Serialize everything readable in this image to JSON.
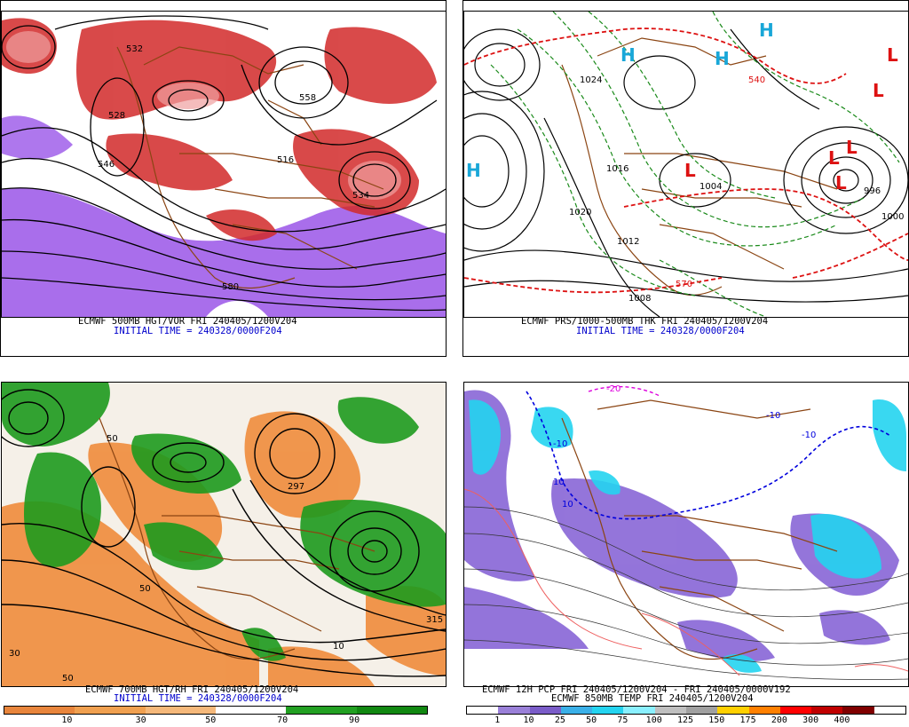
{
  "panels": {
    "top_left": {
      "title_line": "ECMWF 500MB HGT/VOR FRI 240405/1200V204",
      "init_line": "INITIAL TIME = 240328/0000F204",
      "contour_labels": [
        "532",
        "558",
        "516",
        "534",
        "528",
        "580",
        "546"
      ]
    },
    "top_right": {
      "title_line": "ECMWF PRS/1000-500MB THK FRI 240405/1200V204",
      "init_line": "INITIAL TIME = 240328/0000F204",
      "pressure_labels": [
        "1020",
        "1016",
        "1012",
        "1004",
        "996",
        "1000",
        "1008",
        "1024"
      ],
      "thickness_labels": [
        "570",
        "540"
      ],
      "high_marker": "H",
      "low_marker": "L"
    },
    "bottom_left": {
      "title_line": "ECMWF 700MB HGT/RH FRI 240405/1200V204",
      "init_line": "INITIAL TIME = 240328/0000F204",
      "contour_labels": [
        "50",
        "30",
        "297",
        "315",
        "50",
        "50",
        "10"
      ],
      "colorbar": {
        "colors": [
          "#e8853c",
          "#f0a050",
          "#f5b87a",
          "#ffffff",
          "#22a022",
          "#118811"
        ],
        "ticks": [
          "10",
          "30",
          "50",
          "70",
          "90"
        ]
      }
    },
    "bottom_right": {
      "title_line": "ECMWF 12H PCP FRI 240405/1200V204 - FRI 240405/0000V192",
      "subtitle_line": "ECMWF 850MB TEMP FRI 240405/1200V204",
      "contour_labels": [
        "-20",
        "-10",
        "-10",
        "10",
        "-10",
        "10"
      ],
      "colorbar": {
        "colors": [
          "#ffffff",
          "#9a80d8",
          "#7a5cc8",
          "#3ab0e8",
          "#24d4f0",
          "#8af0ff",
          "#bfbfbf",
          "#a0a0a0",
          "#ffd000",
          "#ff8000",
          "#ff0000",
          "#c00000",
          "#800000",
          "#ffffff"
        ],
        "ticks": [
          "1",
          "10",
          "25",
          "50",
          "75",
          "100",
          "125",
          "150",
          "175",
          "200",
          "300",
          "400"
        ]
      }
    }
  },
  "colors": {
    "vorticity": "#d22a2a",
    "vorticity_light": "#f09090",
    "negative_vorticity": "#9a55e8",
    "geography": "#8b4513",
    "isobar": "#000000",
    "thickness_cold": "#1a8a1a",
    "thickness_warm": "#dd1111",
    "high": "#19a7d8",
    "low": "#dd1111",
    "rh_dry": "#f08c3c",
    "rh_moist": "#1e9a1e",
    "snow": "#22c8ec",
    "rain": "#8866d6",
    "caption_blue": "#0000cc"
  }
}
